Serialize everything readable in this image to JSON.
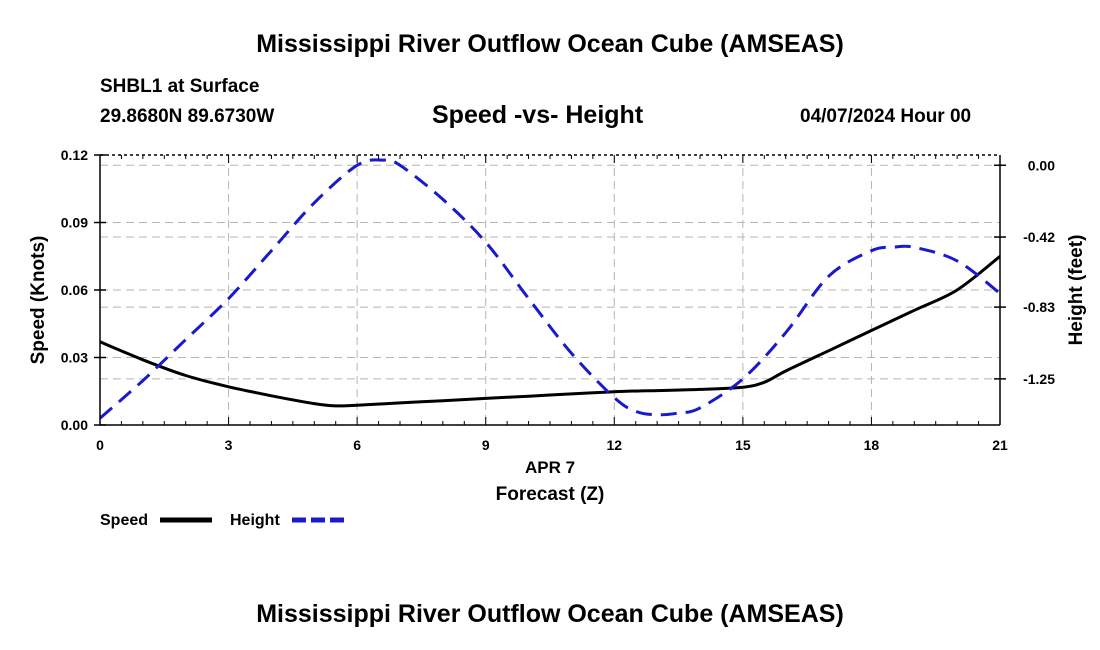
{
  "header": {
    "main_title": "Mississippi River Outflow Ocean Cube (AMSEAS)",
    "station": "SHBL1 at Surface",
    "coords": "29.8680N  89.6730W",
    "chart_title": "Speed -vs- Height",
    "datetime": "04/07/2024 Hour 00"
  },
  "footer": {
    "main_title": "Mississippi River Outflow Ocean Cube (AMSEAS)"
  },
  "chart_data": {
    "type": "line",
    "title": "Speed -vs- Height",
    "xlabel": "Forecast (Z)",
    "xlabel_date": "APR 7",
    "ylabel_left": "Speed (Knots)",
    "ylabel_right": "Height (feet)",
    "xlim": [
      0,
      21
    ],
    "ylim_left": [
      0.0,
      0.12
    ],
    "ylim_right": [
      -1.52,
      0.06
    ],
    "x_ticks": [
      0,
      3,
      6,
      9,
      12,
      15,
      18,
      21
    ],
    "x_tick_labels": [
      "0",
      "3",
      "6",
      "9",
      "12",
      "15",
      "18",
      "21"
    ],
    "y_left_ticks": [
      0.0,
      0.03,
      0.06,
      0.09,
      0.12
    ],
    "y_left_tick_labels": [
      "0.00",
      "0.03",
      "0.06",
      "0.09",
      "0.12"
    ],
    "y_right_ticks": [
      0.0,
      -0.42,
      -0.83,
      -1.25
    ],
    "y_right_tick_labels": [
      "0.00",
      "-0.42",
      "-0.83",
      "-1.25"
    ],
    "grid": true,
    "legend_position": "bottom-left",
    "series": [
      {
        "name": "Speed",
        "axis": "left",
        "color": "#000000",
        "style": "solid",
        "x": [
          0,
          1,
          2,
          3,
          4,
          5,
          5.5,
          6,
          7,
          8,
          9,
          10,
          11,
          12,
          13,
          14,
          15,
          15.5,
          16,
          17,
          18,
          19,
          20,
          21
        ],
        "y": [
          0.037,
          0.029,
          0.022,
          0.017,
          0.013,
          0.0095,
          0.0085,
          0.0088,
          0.0098,
          0.0108,
          0.0118,
          0.0128,
          0.0138,
          0.0148,
          0.0153,
          0.0158,
          0.0168,
          0.019,
          0.024,
          0.033,
          0.042,
          0.051,
          0.06,
          0.075
        ]
      },
      {
        "name": "Height",
        "axis": "right",
        "color": "#1a1acc",
        "style": "dashed",
        "x": [
          0,
          1,
          2,
          3,
          4,
          5,
          6,
          6.6,
          7,
          8,
          9,
          10,
          11,
          12,
          12.5,
          13,
          13.5,
          14,
          15,
          16,
          17,
          18,
          18.5,
          19,
          20,
          21
        ],
        "y": [
          -1.48,
          -1.26,
          -1.02,
          -0.78,
          -0.5,
          -0.22,
          0.0,
          0.03,
          0.0,
          -0.2,
          -0.45,
          -0.78,
          -1.1,
          -1.36,
          -1.44,
          -1.46,
          -1.45,
          -1.42,
          -1.25,
          -0.98,
          -0.65,
          -0.5,
          -0.48,
          -0.48,
          -0.56,
          -0.75
        ]
      }
    ]
  }
}
